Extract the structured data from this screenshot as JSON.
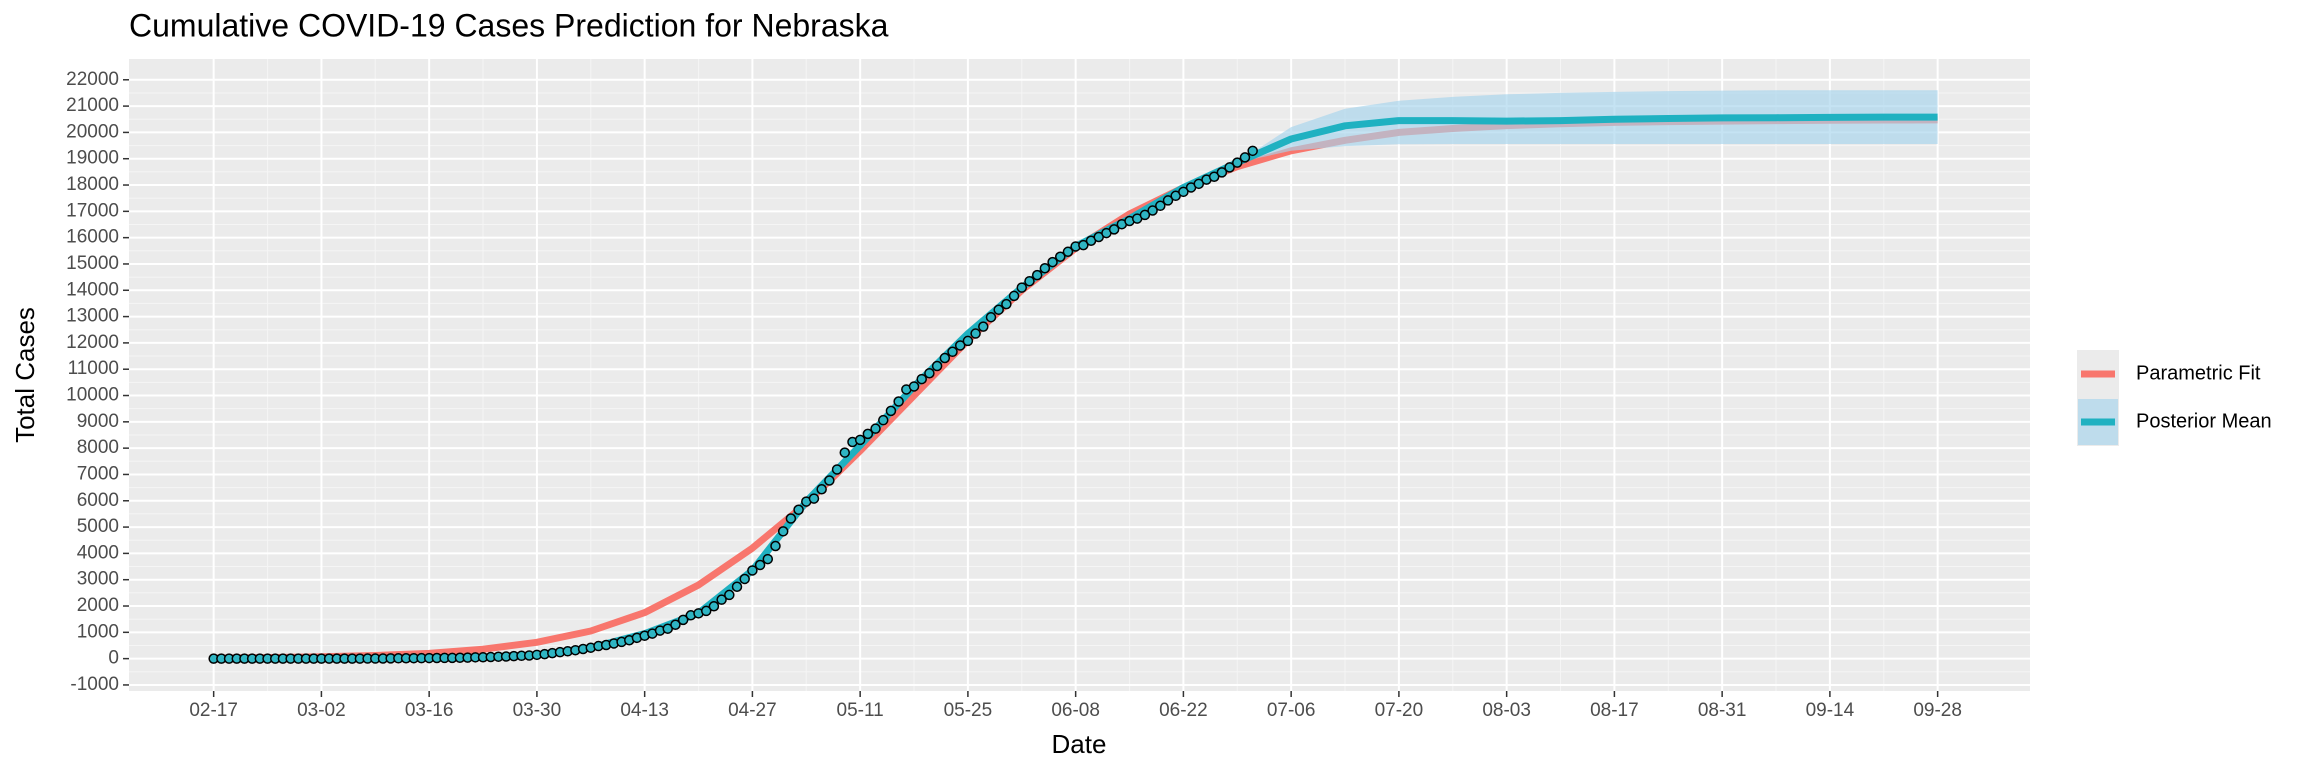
{
  "chart_data": {
    "type": "line",
    "title": "Cumulative COVID-19 Cases Prediction for Nebraska",
    "x_label": "Date",
    "y_label": "Total Cases",
    "xlim": [
      "02-06",
      "10-10"
    ],
    "ylim": [
      -1230,
      22790
    ],
    "xticks": [
      "02-17",
      "03-02",
      "03-16",
      "03-30",
      "04-13",
      "04-27",
      "05-11",
      "05-25",
      "06-08",
      "06-22",
      "07-06",
      "07-20",
      "08-03",
      "08-17",
      "08-31",
      "09-14",
      "09-28"
    ],
    "yticks": [
      -1000,
      0,
      1000,
      2000,
      3000,
      4000,
      5000,
      6000,
      7000,
      8000,
      9000,
      10000,
      11000,
      12000,
      13000,
      14000,
      15000,
      16000,
      17000,
      18000,
      19000,
      20000,
      21000,
      22000
    ],
    "grid": true,
    "legend": "right",
    "series": [
      {
        "name": "Parametric Fit",
        "color": "#f8766d",
        "x": [
          "02-17",
          "02-24",
          "03-02",
          "03-09",
          "03-16",
          "03-23",
          "03-30",
          "04-06",
          "04-13",
          "04-20",
          "04-27",
          "05-04",
          "05-11",
          "05-18",
          "05-25",
          "06-01",
          "06-08",
          "06-15",
          "06-22",
          "06-29",
          "07-06",
          "07-13",
          "07-20",
          "07-27",
          "08-03",
          "08-10",
          "08-17",
          "08-24",
          "08-31",
          "09-07",
          "09-14",
          "09-21",
          "09-28"
        ],
        "values": [
          20,
          40,
          70,
          120,
          200,
          360,
          620,
          1050,
          1750,
          2800,
          4200,
          5900,
          7900,
          10000,
          12100,
          14000,
          15600,
          16900,
          17900,
          18700,
          19300,
          19700,
          20000,
          20150,
          20260,
          20330,
          20380,
          20410,
          20430,
          20450,
          20460,
          20470,
          20475
        ]
      },
      {
        "name": "Posterior Mean",
        "color": "#1fb1c1",
        "x": [
          "02-17",
          "02-24",
          "03-02",
          "03-09",
          "03-16",
          "03-23",
          "03-30",
          "04-06",
          "04-13",
          "04-20",
          "04-27",
          "05-04",
          "05-11",
          "05-18",
          "05-25",
          "06-01",
          "06-08",
          "06-15",
          "06-22",
          "06-29",
          "07-06",
          "07-13",
          "07-20",
          "07-27",
          "08-03",
          "08-10",
          "08-17",
          "08-24",
          "08-31",
          "09-07",
          "09-14",
          "09-21",
          "09-28"
        ],
        "values": [
          0,
          0,
          0,
          5,
          24,
          61,
          145,
          415,
          952,
          1722,
          3352,
          5969,
          8100,
          10345,
          12355,
          14103,
          15666,
          16725,
          17908,
          18852,
          19750,
          20250,
          20450,
          20450,
          20430,
          20450,
          20500,
          20530,
          20550,
          20560,
          20570,
          20580,
          20580
        ]
      }
    ],
    "ribbon": {
      "color": "#a6d4ec",
      "x": [
        "06-29",
        "07-06",
        "07-13",
        "07-20",
        "07-27",
        "08-03",
        "08-10",
        "08-17",
        "08-24",
        "08-31",
        "09-07",
        "09-14",
        "09-21",
        "09-28"
      ],
      "lower": [
        18852,
        19300,
        19480,
        19550,
        19560,
        19560,
        19560,
        19560,
        19560,
        19560,
        19560,
        19560,
        19560,
        19560
      ],
      "upper": [
        18852,
        20200,
        20900,
        21200,
        21350,
        21450,
        21500,
        21540,
        21570,
        21590,
        21600,
        21600,
        21600,
        21600
      ]
    },
    "observed": {
      "color": "#2fb5c3",
      "x": [
        "02-17",
        "02-18",
        "02-19",
        "02-20",
        "02-21",
        "02-22",
        "02-23",
        "02-24",
        "02-25",
        "02-26",
        "02-27",
        "02-28",
        "02-29",
        "03-01",
        "03-02",
        "03-03",
        "03-04",
        "03-05",
        "03-06",
        "03-07",
        "03-08",
        "03-09",
        "03-10",
        "03-11",
        "03-12",
        "03-13",
        "03-14",
        "03-15",
        "03-16",
        "03-17",
        "03-18",
        "03-19",
        "03-20",
        "03-21",
        "03-22",
        "03-23",
        "03-24",
        "03-25",
        "03-26",
        "03-27",
        "03-28",
        "03-29",
        "03-30",
        "03-31",
        "04-01",
        "04-02",
        "04-03",
        "04-04",
        "04-05",
        "04-06",
        "04-07",
        "04-08",
        "04-09",
        "04-10",
        "04-11",
        "04-12",
        "04-13",
        "04-14",
        "04-15",
        "04-16",
        "04-17",
        "04-18",
        "04-19",
        "04-20",
        "04-21",
        "04-22",
        "04-23",
        "04-24",
        "04-25",
        "04-26",
        "04-27",
        "04-28",
        "04-29",
        "04-30",
        "05-01",
        "05-02",
        "05-03",
        "05-04",
        "05-05",
        "05-06",
        "05-07",
        "05-08",
        "05-09",
        "05-10",
        "05-11",
        "05-12",
        "05-13",
        "05-14",
        "05-15",
        "05-16",
        "05-17",
        "05-18",
        "05-19",
        "05-20",
        "05-21",
        "05-22",
        "05-23",
        "05-24",
        "05-25",
        "05-26",
        "05-27",
        "05-28",
        "05-29",
        "05-30",
        "05-31",
        "06-01",
        "06-02",
        "06-03",
        "06-04",
        "06-05",
        "06-06",
        "06-07",
        "06-08",
        "06-09",
        "06-10",
        "06-11",
        "06-12",
        "06-13",
        "06-14",
        "06-15",
        "06-16",
        "06-17",
        "06-18",
        "06-19",
        "06-20",
        "06-21",
        "06-22",
        "06-23",
        "06-24",
        "06-25",
        "06-26",
        "06-27",
        "06-28",
        "06-29",
        "06-30",
        "07-01"
      ],
      "values": [
        0,
        0,
        0,
        0,
        0,
        0,
        0,
        0,
        0,
        0,
        0,
        0,
        0,
        0,
        0,
        0,
        0,
        0,
        1,
        1,
        3,
        3,
        5,
        10,
        13,
        14,
        17,
        18,
        21,
        24,
        27,
        28,
        34,
        38,
        50,
        52,
        61,
        73,
        81,
        96,
        108,
        120,
        145,
        172,
        210,
        246,
        279,
        321,
        367,
        415,
        478,
        519,
        577,
        635,
        698,
        791,
        871,
        952,
        1066,
        1138,
        1287,
        1474,
        1648,
        1722,
        1813,
        1990,
        2241,
        2421,
        2732,
        3028,
        3352,
        3560,
        3784,
        4281,
        4838,
        5326,
        5659,
        5969,
        6083,
        6438,
        6771,
        7190,
        7831,
        8234,
        8315,
        8543,
        8740,
        9063,
        9416,
        9772,
        10231,
        10345,
        10625,
        10846,
        11122,
        11425,
        11662,
        11903,
        12075,
        12355,
        12619,
        12976,
        13261,
        13474,
        13786,
        14103,
        14345,
        14576,
        14838,
        15071,
        15274,
        15463,
        15666,
        15717,
        15883,
        16025,
        16174,
        16314,
        16511,
        16633,
        16725,
        16864,
        17031,
        17211,
        17415,
        17591,
        17742,
        17908,
        18046,
        18206,
        18314,
        18481,
        18670,
        18852,
        19050,
        19300
      ]
    }
  }
}
